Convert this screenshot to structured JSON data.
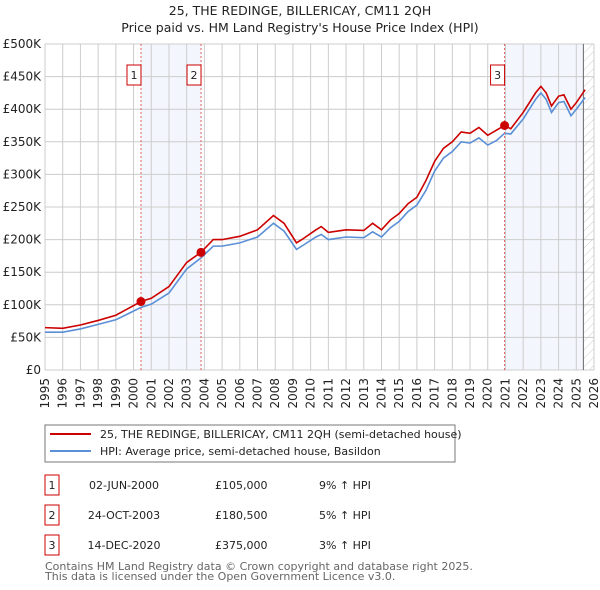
{
  "chart_data": {
    "type": "line",
    "title": "25, THE REDINGE, BILLERICAY, CM11 2QH",
    "subtitle": "Price paid vs. HM Land Registry's House Price Index (HPI)",
    "xlim": [
      1995,
      2026
    ],
    "ylim": [
      0,
      500000
    ],
    "grid": true,
    "x_ticks": [
      "1995",
      "1996",
      "1997",
      "1998",
      "1999",
      "2000",
      "2001",
      "2002",
      "2003",
      "2004",
      "2005",
      "2006",
      "2007",
      "2008",
      "2009",
      "2010",
      "2011",
      "2012",
      "2013",
      "2014",
      "2015",
      "2016",
      "2017",
      "2018",
      "2019",
      "2020",
      "2021",
      "2022",
      "2023",
      "2024",
      "2025",
      "2026"
    ],
    "y_ticks": [
      {
        "v": 0,
        "label": "£0"
      },
      {
        "v": 50000,
        "label": "£50K"
      },
      {
        "v": 100000,
        "label": "£100K"
      },
      {
        "v": 150000,
        "label": "£150K"
      },
      {
        "v": 200000,
        "label": "£200K"
      },
      {
        "v": 250000,
        "label": "£250K"
      },
      {
        "v": 300000,
        "label": "£300K"
      },
      {
        "v": 350000,
        "label": "£350K"
      },
      {
        "v": 400000,
        "label": "£400K"
      },
      {
        "v": 450000,
        "label": "£450K"
      },
      {
        "v": 500000,
        "label": "£500K"
      }
    ],
    "series": [
      {
        "name": "25, THE REDINGE, BILLERICAY, CM11 2QH (semi-detached house)",
        "color": "#cc0000",
        "x": [
          1995,
          1996,
          1997,
          1998,
          1999,
          2000.42,
          2001,
          2002,
          2003,
          2003.81,
          2004.5,
          2005,
          2006,
          2007,
          2007.9,
          2008.5,
          2009.2,
          2009.5,
          2010.3,
          2010.6,
          2011,
          2012,
          2013,
          2013.5,
          2014,
          2014.5,
          2015,
          2015.5,
          2016,
          2016.5,
          2017,
          2017.5,
          2018,
          2018.5,
          2019,
          2019.5,
          2020,
          2020.5,
          2020.95,
          2021.3,
          2022,
          2022.7,
          2023,
          2023.3,
          2023.6,
          2024,
          2024.3,
          2024.7,
          2025,
          2025.5
        ],
        "y": [
          65000,
          64000,
          69000,
          76000,
          84000,
          105000,
          110000,
          128000,
          165000,
          180500,
          200000,
          200000,
          205000,
          215000,
          237000,
          225000,
          195000,
          200000,
          215000,
          220000,
          211000,
          215000,
          214000,
          225000,
          215000,
          230000,
          240000,
          255000,
          265000,
          290000,
          320000,
          340000,
          350000,
          365000,
          363000,
          372000,
          360000,
          368000,
          375000,
          370000,
          395000,
          425000,
          435000,
          425000,
          405000,
          420000,
          422000,
          400000,
          410000,
          430000
        ]
      },
      {
        "name": "HPI: Average price, semi-detached house, Basildon",
        "color": "#5b8fd6",
        "x": [
          1995,
          1996,
          1997,
          1998,
          1999,
          2000.42,
          2001,
          2002,
          2003,
          2003.81,
          2004.5,
          2005,
          2006,
          2007,
          2007.9,
          2008.5,
          2009.2,
          2009.5,
          2010.3,
          2010.6,
          2011,
          2012,
          2013,
          2013.5,
          2014,
          2014.5,
          2015,
          2015.5,
          2016,
          2016.5,
          2017,
          2017.5,
          2018,
          2018.5,
          2019,
          2019.5,
          2020,
          2020.5,
          2020.95,
          2021.3,
          2022,
          2022.7,
          2023,
          2023.3,
          2023.6,
          2024,
          2024.3,
          2024.7,
          2025,
          2025.5
        ],
        "y": [
          58000,
          58000,
          63000,
          70000,
          77000,
          96000,
          101000,
          118000,
          155000,
          172000,
          190000,
          190000,
          195000,
          204000,
          225000,
          213000,
          185000,
          190000,
          204000,
          208000,
          200000,
          204000,
          203000,
          212000,
          204000,
          218000,
          228000,
          243000,
          253000,
          275000,
          305000,
          325000,
          335000,
          350000,
          348000,
          356000,
          345000,
          352000,
          363000,
          362000,
          385000,
          415000,
          425000,
          415000,
          395000,
          410000,
          412000,
          390000,
          400000,
          418000
        ]
      }
    ],
    "sales": [
      {
        "num": "1",
        "date": "02-JUN-2000",
        "x": 2000.42,
        "price": "£105,000",
        "value": 105000,
        "hpi": "9% ↑ HPI"
      },
      {
        "num": "2",
        "date": "24-OCT-2003",
        "x": 2003.81,
        "price": "£180,500",
        "value": 180500,
        "hpi": "5% ↑ HPI"
      },
      {
        "num": "3",
        "date": "14-DEC-2020",
        "x": 2020.95,
        "price": "£375,000",
        "value": 375000,
        "hpi": "3% ↑ HPI"
      }
    ],
    "forecast_from": 2025.4
  },
  "footer": [
    "Contains HM Land Registry data © Crown copyright and database right 2025.",
    "This data is licensed under the Open Government Licence v3.0."
  ]
}
